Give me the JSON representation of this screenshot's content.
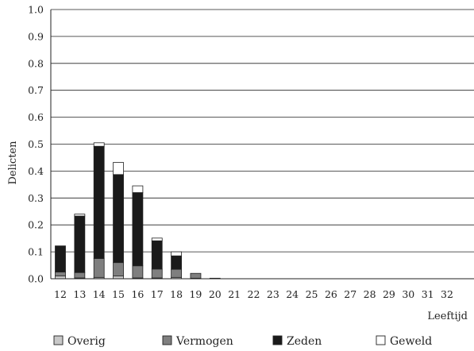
{
  "chart_data": {
    "type": "bar",
    "stacked": true,
    "ylabel": "Delicten",
    "xlabel": "Leeftijd",
    "ylim": [
      0,
      1.0
    ],
    "yticks": [
      "0.0",
      "0.1",
      "0.2",
      "0.3",
      "0.4",
      "0.5",
      "0.6",
      "0.7",
      "0.8",
      "0.9",
      "1.0"
    ],
    "grid": true,
    "legend_position": "bottom",
    "categories": [
      "12",
      "13",
      "14",
      "15",
      "16",
      "17",
      "18",
      "19",
      "20",
      "21",
      "22",
      "23",
      "24",
      "25",
      "26",
      "27",
      "28",
      "29",
      "30",
      "31",
      "32"
    ],
    "series": [
      {
        "name": "Overig",
        "color": "#c8c8c8",
        "values": [
          0.01,
          0.003,
          0.005,
          0.01,
          0.003,
          0.003,
          0.005,
          0.002,
          0.0,
          0,
          0,
          0,
          0,
          0,
          0,
          0,
          0,
          0,
          0,
          0,
          0
        ]
      },
      {
        "name": "Vermogen",
        "color": "#7f7f7f",
        "values": [
          0.015,
          0.02,
          0.07,
          0.05,
          0.045,
          0.033,
          0.03,
          0.018,
          0.002,
          0,
          0,
          0,
          0,
          0,
          0,
          0,
          0,
          0,
          0,
          0,
          0
        ]
      },
      {
        "name": "Zeden",
        "color": "#1a1a1a",
        "values": [
          0.097,
          0.21,
          0.417,
          0.327,
          0.272,
          0.105,
          0.05,
          0.0,
          0.0,
          0,
          0,
          0,
          0,
          0,
          0,
          0,
          0,
          0,
          0,
          0,
          0
        ]
      },
      {
        "name": "Geweld",
        "color": "#ffffff",
        "values": [
          0.0,
          0.007,
          0.013,
          0.045,
          0.025,
          0.01,
          0.015,
          0.0,
          0.0,
          0,
          0,
          0,
          0,
          0,
          0,
          0,
          0,
          0,
          0,
          0,
          0
        ]
      }
    ]
  }
}
